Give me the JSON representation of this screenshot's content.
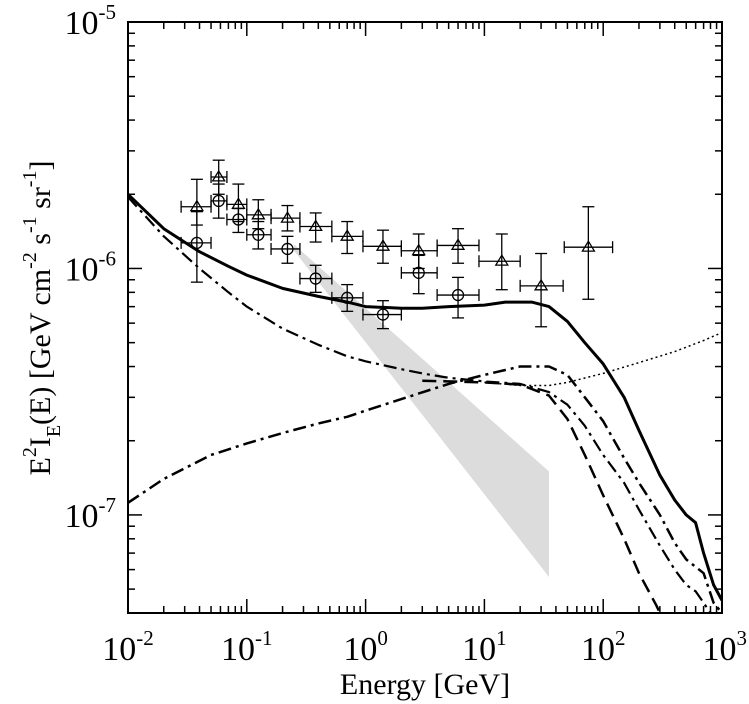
{
  "chart_data": {
    "type": "scatter",
    "xscale": "log",
    "yscale": "log",
    "xlim": [
      0.01,
      1000
    ],
    "ylim": [
      4e-08,
      1e-05
    ],
    "grid": false,
    "title": "",
    "xlabel": "Energy [GeV]",
    "ylabel": "E2 IE(E) [GeV cm-2 s-1 sr-1]",
    "ylabel_parts": {
      "base1": "E",
      "sup1": "2",
      "base2": "I",
      "sub2": "E",
      "base3": "(E) [GeV cm",
      "sup3": "-2",
      "base4": " s",
      "sup4": "-1",
      "base5": " sr",
      "sup5": "-1",
      "base6": "]"
    },
    "x_ticks": [
      {
        "value": 0.01,
        "base": "10",
        "exp": "-2"
      },
      {
        "value": 0.1,
        "base": "10",
        "exp": "-1"
      },
      {
        "value": 1,
        "base": "10",
        "exp": "0"
      },
      {
        "value": 10,
        "base": "10",
        "exp": "1"
      },
      {
        "value": 100,
        "base": "10",
        "exp": "2"
      },
      {
        "value": 1000,
        "base": "10",
        "exp": "3"
      }
    ],
    "y_ticks": [
      {
        "value": 1e-07,
        "base": "10",
        "exp": "-7"
      },
      {
        "value": 1e-06,
        "base": "10",
        "exp": "-6"
      },
      {
        "value": 1e-05,
        "base": "10",
        "exp": "-5"
      }
    ],
    "series": [
      {
        "name": "triangles",
        "marker": "triangle",
        "points": [
          {
            "x": 0.038,
            "y": 1.78e-06,
            "xerr": [
              0.028,
              0.05
            ],
            "yerr": [
              1.5e-06,
              2.3e-06
            ]
          },
          {
            "x": 0.058,
            "y": 2.35e-06,
            "xerr": [
              0.05,
              0.068
            ],
            "yerr": [
              2e-06,
              2.75e-06
            ]
          },
          {
            "x": 0.085,
            "y": 1.82e-06,
            "xerr": [
              0.068,
              0.1
            ],
            "yerr": [
              1.55e-06,
              2.2e-06
            ]
          },
          {
            "x": 0.125,
            "y": 1.65e-06,
            "xerr": [
              0.1,
              0.16
            ],
            "yerr": [
              1.45e-06,
              1.9e-06
            ]
          },
          {
            "x": 0.22,
            "y": 1.6e-06,
            "xerr": [
              0.16,
              0.28
            ],
            "yerr": [
              1.42e-06,
              1.8e-06
            ]
          },
          {
            "x": 0.38,
            "y": 1.48e-06,
            "xerr": [
              0.28,
              0.52
            ],
            "yerr": [
              1.28e-06,
              1.68e-06
            ]
          },
          {
            "x": 0.7,
            "y": 1.35e-06,
            "xerr": [
              0.52,
              0.95
            ],
            "yerr": [
              1.15e-06,
              1.55e-06
            ]
          },
          {
            "x": 1.4,
            "y": 1.23e-06,
            "xerr": [
              0.95,
              2.0
            ],
            "yerr": [
              1.05e-06,
              1.43e-06
            ]
          },
          {
            "x": 2.8,
            "y": 1.18e-06,
            "xerr": [
              2.0,
              4.0
            ],
            "yerr": [
              1e-06,
              1.38e-06
            ]
          },
          {
            "x": 6.0,
            "y": 1.24e-06,
            "xerr": [
              4.0,
              9.0
            ],
            "yerr": [
              1.05e-06,
              1.45e-06
            ]
          },
          {
            "x": 14,
            "y": 1.07e-06,
            "xerr": [
              9.0,
              20
            ],
            "yerr": [
              8.2e-07,
              1.38e-06
            ]
          },
          {
            "x": 30,
            "y": 8.5e-07,
            "xerr": [
              20,
              46
            ],
            "yerr": [
              5.8e-07,
              1.15e-06
            ]
          },
          {
            "x": 75,
            "y": 1.22e-06,
            "xerr": [
              47,
              120
            ],
            "yerr": [
              7.5e-07,
              1.78e-06
            ]
          }
        ]
      },
      {
        "name": "circles",
        "marker": "circle",
        "points": [
          {
            "x": 0.038,
            "y": 1.27e-06,
            "xerr": [
              0.028,
              0.05
            ],
            "yerr": [
              8.8e-07,
              1.7e-06
            ]
          },
          {
            "x": 0.058,
            "y": 1.88e-06,
            "xerr": [
              0.05,
              0.068
            ],
            "yerr": [
              1.6e-06,
              2.2e-06
            ]
          },
          {
            "x": 0.085,
            "y": 1.58e-06,
            "xerr": [
              0.068,
              0.1
            ],
            "yerr": [
              1.4e-06,
              1.75e-06
            ]
          },
          {
            "x": 0.125,
            "y": 1.37e-06,
            "xerr": [
              0.1,
              0.16
            ],
            "yerr": [
              1.2e-06,
              1.55e-06
            ]
          },
          {
            "x": 0.22,
            "y": 1.2e-06,
            "xerr": [
              0.16,
              0.28
            ],
            "yerr": [
              1.05e-06,
              1.35e-06
            ]
          },
          {
            "x": 0.38,
            "y": 9.1e-07,
            "xerr": [
              0.28,
              0.52
            ],
            "yerr": [
              8e-07,
              1.03e-06
            ]
          },
          {
            "x": 0.7,
            "y": 7.6e-07,
            "xerr": [
              0.52,
              0.95
            ],
            "yerr": [
              6.7e-07,
              8.6e-07
            ]
          },
          {
            "x": 1.4,
            "y": 6.5e-07,
            "xerr": [
              0.95,
              2.0
            ],
            "yerr": [
              5.7e-07,
              7.4e-07
            ]
          },
          {
            "x": 2.8,
            "y": 9.6e-07,
            "xerr": [
              2.0,
              4.0
            ],
            "yerr": [
              7.9e-07,
              1.13e-06
            ]
          },
          {
            "x": 6.0,
            "y": 7.8e-07,
            "xerr": [
              4.0,
              9.0
            ],
            "yerr": [
              6.3e-07,
              9.2e-07
            ]
          }
        ]
      }
    ],
    "curves": [
      {
        "name": "solid",
        "style": "solid",
        "width": 3,
        "points": [
          [
            0.01,
            2e-06
          ],
          [
            0.02,
            1.45e-06
          ],
          [
            0.04,
            1.17e-06
          ],
          [
            0.07,
            1.02e-06
          ],
          [
            0.1,
            9.4e-07
          ],
          [
            0.2,
            8.3e-07
          ],
          [
            0.4,
            7.7e-07
          ],
          [
            0.7,
            7.3e-07
          ],
          [
            1,
            7e-07
          ],
          [
            2,
            6.9e-07
          ],
          [
            3,
            6.9e-07
          ],
          [
            5,
            7e-07
          ],
          [
            10,
            7.1e-07
          ],
          [
            15,
            7.3e-07
          ],
          [
            25,
            7.3e-07
          ],
          [
            35,
            7e-07
          ],
          [
            50,
            6.1e-07
          ],
          [
            70,
            5e-07
          ],
          [
            100,
            4.1e-07
          ],
          [
            150,
            3e-07
          ],
          [
            200,
            2.2e-07
          ],
          [
            300,
            1.45e-07
          ],
          [
            400,
            1.15e-07
          ],
          [
            500,
            1e-07
          ],
          [
            600,
            9.3e-08
          ],
          [
            700,
            7e-08
          ],
          [
            850,
            5.2e-08
          ],
          [
            1000,
            4.5e-08
          ]
        ]
      },
      {
        "name": "dash-dot",
        "style": "dashdot",
        "width": 2.2,
        "points": [
          [
            0.01,
            1.95e-06
          ],
          [
            0.02,
            1.35e-06
          ],
          [
            0.04,
            1e-06
          ],
          [
            0.07,
            8e-07
          ],
          [
            0.1,
            7e-07
          ],
          [
            0.2,
            5.7e-07
          ],
          [
            0.4,
            4.9e-07
          ],
          [
            0.7,
            4.4e-07
          ],
          [
            1,
            4.2e-07
          ],
          [
            2,
            3.9e-07
          ],
          [
            3,
            3.75e-07
          ],
          [
            5,
            3.6e-07
          ],
          [
            10,
            3.48e-07
          ],
          [
            20,
            3.4e-07
          ],
          [
            35,
            3.15e-07
          ],
          [
            50,
            2.8e-07
          ],
          [
            70,
            2.3e-07
          ],
          [
            100,
            1.75e-07
          ],
          [
            150,
            1.35e-07
          ],
          [
            200,
            1.05e-07
          ],
          [
            300,
            7.5e-08
          ],
          [
            400,
            6e-08
          ],
          [
            500,
            5.2e-08
          ],
          [
            600,
            4.9e-08
          ],
          [
            700,
            4.4e-08
          ],
          [
            800,
            4e-08
          ]
        ]
      },
      {
        "name": "dashed",
        "style": "dashed",
        "width": 2.5,
        "points": [
          [
            3,
            3.5e-07
          ],
          [
            5,
            3.48e-07
          ],
          [
            10,
            3.45e-07
          ],
          [
            20,
            3.38e-07
          ],
          [
            35,
            3.05e-07
          ],
          [
            50,
            2.45e-07
          ],
          [
            70,
            1.75e-07
          ],
          [
            100,
            1.2e-07
          ],
          [
            150,
            8e-08
          ],
          [
            200,
            5.8e-08
          ],
          [
            280,
            4.3e-08
          ],
          [
            300,
            4e-08
          ]
        ]
      },
      {
        "name": "dash-dot-rising",
        "style": "dashdot",
        "width": 2.5,
        "points": [
          [
            0.01,
            1.12e-07
          ],
          [
            0.02,
            1.4e-07
          ],
          [
            0.05,
            1.75e-07
          ],
          [
            0.1,
            1.95e-07
          ],
          [
            0.2,
            2.15e-07
          ],
          [
            0.4,
            2.35e-07
          ],
          [
            0.7,
            2.5e-07
          ],
          [
            1,
            2.65e-07
          ],
          [
            2,
            2.95e-07
          ],
          [
            5,
            3.4e-07
          ],
          [
            10,
            3.7e-07
          ],
          [
            20,
            4e-07
          ],
          [
            35,
            4e-07
          ],
          [
            50,
            3.7e-07
          ],
          [
            70,
            3e-07
          ],
          [
            100,
            2.4e-07
          ],
          [
            150,
            1.7e-07
          ],
          [
            200,
            1.35e-07
          ],
          [
            300,
            1e-07
          ],
          [
            400,
            7.7e-08
          ],
          [
            500,
            6.6e-08
          ],
          [
            700,
            5.8e-08
          ],
          [
            850,
            4.4e-08
          ],
          [
            1000,
            4e-08
          ]
        ]
      },
      {
        "name": "dotted",
        "style": "dotted",
        "width": 1.5,
        "points": [
          [
            10,
            3.45e-07
          ],
          [
            20,
            3.35e-07
          ],
          [
            35,
            3.35e-07
          ],
          [
            50,
            3.45e-07
          ],
          [
            100,
            3.75e-07
          ],
          [
            200,
            4.15e-07
          ],
          [
            400,
            4.6e-07
          ],
          [
            700,
            5.1e-07
          ],
          [
            1000,
            5.5e-07
          ]
        ]
      }
    ],
    "band": {
      "name": "grey-band",
      "color": "#dcdcdc",
      "upper": [
        [
          0.25,
          1.25e-06
        ],
        [
          35,
          1.5e-07
        ]
      ],
      "lower": [
        [
          0.25,
          1.18e-06
        ],
        [
          35,
          5.6e-08
        ]
      ]
    }
  }
}
